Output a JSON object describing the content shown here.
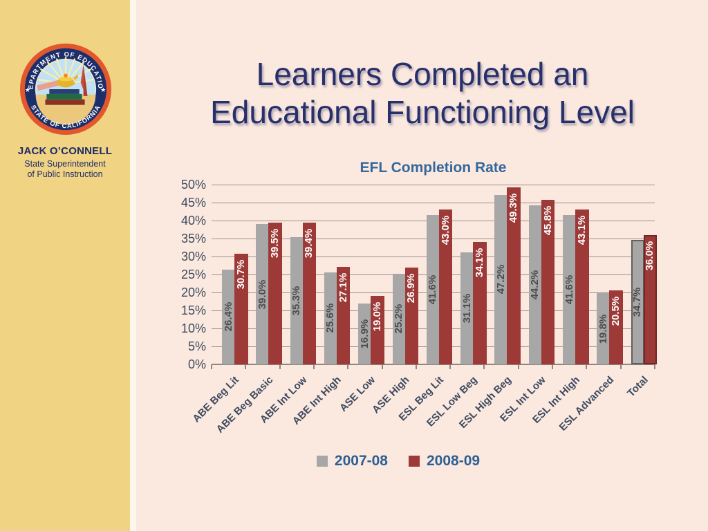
{
  "sidebar": {
    "seal": {
      "top_text": "DEPARTMENT OF EDUCATION",
      "bottom_text": "STATE OF CALIFORNIA",
      "star_left": "★",
      "star_right": "★"
    },
    "name": "JACK O’CONNELL",
    "title_line1": "State Superintendent",
    "title_line2": "of Public Instruction"
  },
  "title": {
    "line1": "Learners Completed an",
    "line2": "Educational Functioning Level"
  },
  "chart_data": {
    "type": "bar",
    "title": "EFL Completion Rate",
    "categories": [
      "ABE Beg Lit",
      "ABE Beg Basic",
      "ABE Int Low",
      "ABE Int High",
      "ASE Low",
      "ASE High",
      "ESL Beg Lit",
      "ESL Low Beg",
      "ESL High Beg",
      "ESL Int Low",
      "ESL Int High",
      "ESL Advanced",
      "Total"
    ],
    "series": [
      {
        "name": "2007-08",
        "color": "#a7a7a7",
        "label_color": "#4c4c4c",
        "values": [
          26.4,
          39.0,
          35.3,
          25.6,
          16.9,
          25.2,
          41.6,
          31.1,
          47.2,
          44.2,
          41.6,
          19.8,
          34.7
        ]
      },
      {
        "name": "2008-09",
        "color": "#9d3a38",
        "label_color": "#ffffff",
        "values": [
          30.7,
          39.5,
          39.4,
          27.1,
          19.0,
          26.9,
          43.0,
          34.1,
          49.3,
          45.8,
          43.1,
          20.5,
          36.0
        ]
      }
    ],
    "xlabel": "",
    "ylabel": "",
    "ylim": [
      0,
      50
    ],
    "y_tick_labels": [
      "0%",
      "5%",
      "10%",
      "15%",
      "20%",
      "25%",
      "30%",
      "35%",
      "40%",
      "45%",
      "50%"
    ],
    "grid": true,
    "legend_position": "bottom",
    "value_label_suffix": "%"
  },
  "colors": {
    "background": "#fbe9e0",
    "sidebar": "#f0d383",
    "title_navy": "#27306a",
    "chart_blue": "#35689b",
    "axis_text": "#3d4a5e",
    "gridline": "#958f89",
    "bar_gray": "#a7a7a7",
    "bar_red": "#9d3a38"
  }
}
